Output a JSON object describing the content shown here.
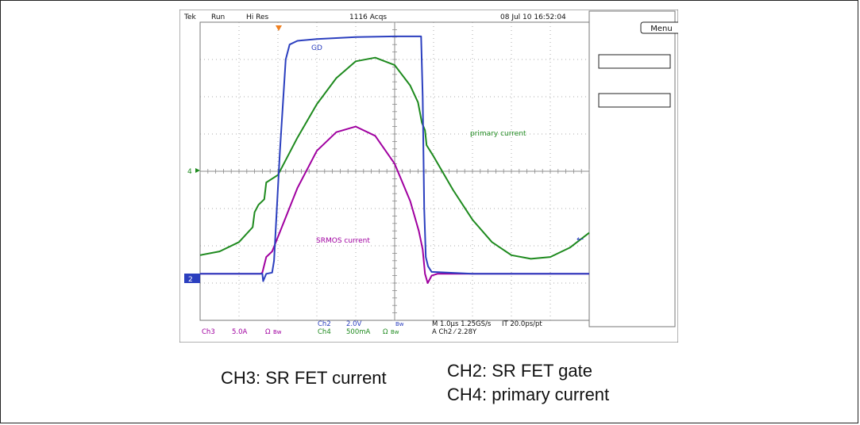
{
  "status_bar": {
    "brand": "Tek",
    "mode": "Run",
    "acq_mode": "Hi Res",
    "acq_count": "1116 Acqs",
    "timestamp": "08 Jul 10 16:52:04"
  },
  "menu_button": {
    "label": "Menu"
  },
  "markers": {
    "ch4_level": "4",
    "ch2_level": "2"
  },
  "trace_labels": {
    "gd": "GD",
    "primary": "primary current",
    "srmos": "SRMOS current"
  },
  "readout": {
    "ch2_name": "Ch2",
    "ch2_scale": "2.0V",
    "ch2_bw": "Bw",
    "ch3_name": "Ch3",
    "ch3_scale": "5.0A",
    "ch3_unit": "Ω",
    "ch3_bw": "Bw",
    "ch4_name": "Ch4",
    "ch4_scale": "500mA",
    "ch4_unit": "Ω",
    "ch4_bw": "Bw",
    "timebase": "M 1.0µs 1.25GS/s",
    "interp": "IT 20.0ps/pt",
    "trigger": "A Ch2 ⁄ 2.28Y"
  },
  "captions": {
    "left": "CH3: SR FET current",
    "right_line1": "CH2: SR FET gate",
    "right_line2": "CH4: primary current"
  },
  "colors": {
    "ch2": "#2b3fbf",
    "ch3": "#a000a0",
    "ch4": "#1e8a1e",
    "grid": "#8c8c8c"
  },
  "chart_data": {
    "type": "line",
    "title": "",
    "xlabel": "",
    "ylabel": "",
    "x_unit": "div",
    "y_unit": "div",
    "xlim": [
      0,
      10
    ],
    "ylim": [
      -4,
      4
    ],
    "grid": true,
    "series": [
      {
        "name": "GD",
        "channel": "CH2",
        "scale": "2.0V/div",
        "points": [
          [
            0,
            -2.75
          ],
          [
            1.6,
            -2.75
          ],
          [
            1.62,
            -2.95
          ],
          [
            1.7,
            -2.75
          ],
          [
            1.85,
            -2.72
          ],
          [
            1.9,
            -2.4
          ],
          [
            2.05,
            0.5
          ],
          [
            2.2,
            3.0
          ],
          [
            2.3,
            3.4
          ],
          [
            2.5,
            3.5
          ],
          [
            3.0,
            3.55
          ],
          [
            4.0,
            3.6
          ],
          [
            5.0,
            3.62
          ],
          [
            5.68,
            3.62
          ],
          [
            5.72,
            2.0
          ],
          [
            5.76,
            -1.0
          ],
          [
            5.8,
            -2.3
          ],
          [
            5.86,
            -2.55
          ],
          [
            5.95,
            -2.7
          ],
          [
            7.0,
            -2.75
          ],
          [
            10,
            -2.75
          ]
        ]
      },
      {
        "name": "SRMOS current",
        "channel": "CH3",
        "scale": "5.0A/div",
        "points": [
          [
            0,
            -2.75
          ],
          [
            1.55,
            -2.75
          ],
          [
            1.6,
            -2.72
          ],
          [
            1.7,
            -2.3
          ],
          [
            1.85,
            -2.15
          ],
          [
            2.1,
            -1.5
          ],
          [
            2.5,
            -0.45
          ],
          [
            3.0,
            0.55
          ],
          [
            3.5,
            1.05
          ],
          [
            4.0,
            1.2
          ],
          [
            4.5,
            0.95
          ],
          [
            5.0,
            0.2
          ],
          [
            5.4,
            -0.8
          ],
          [
            5.62,
            -1.6
          ],
          [
            5.72,
            -2.1
          ],
          [
            5.78,
            -2.75
          ],
          [
            5.85,
            -3.0
          ],
          [
            5.95,
            -2.8
          ],
          [
            6.1,
            -2.75
          ],
          [
            10,
            -2.75
          ]
        ]
      },
      {
        "name": "primary current",
        "channel": "CH4",
        "scale": "500mA/div",
        "points": [
          [
            0,
            -2.25
          ],
          [
            0.5,
            -2.15
          ],
          [
            1.0,
            -1.9
          ],
          [
            1.35,
            -1.5
          ],
          [
            1.4,
            -1.1
          ],
          [
            1.5,
            -0.9
          ],
          [
            1.65,
            -0.75
          ],
          [
            1.7,
            -0.3
          ],
          [
            2.0,
            -0.1
          ],
          [
            2.5,
            0.9
          ],
          [
            3.0,
            1.8
          ],
          [
            3.5,
            2.5
          ],
          [
            4.0,
            2.95
          ],
          [
            4.5,
            3.05
          ],
          [
            5.0,
            2.85
          ],
          [
            5.4,
            2.3
          ],
          [
            5.6,
            1.85
          ],
          [
            5.7,
            1.3
          ],
          [
            5.78,
            1.1
          ],
          [
            5.82,
            0.7
          ],
          [
            6.0,
            0.4
          ],
          [
            6.5,
            -0.5
          ],
          [
            7.0,
            -1.3
          ],
          [
            7.5,
            -1.9
          ],
          [
            8.0,
            -2.25
          ],
          [
            8.5,
            -2.35
          ],
          [
            9.0,
            -2.3
          ],
          [
            9.5,
            -2.05
          ],
          [
            10,
            -1.65
          ]
        ]
      }
    ]
  }
}
